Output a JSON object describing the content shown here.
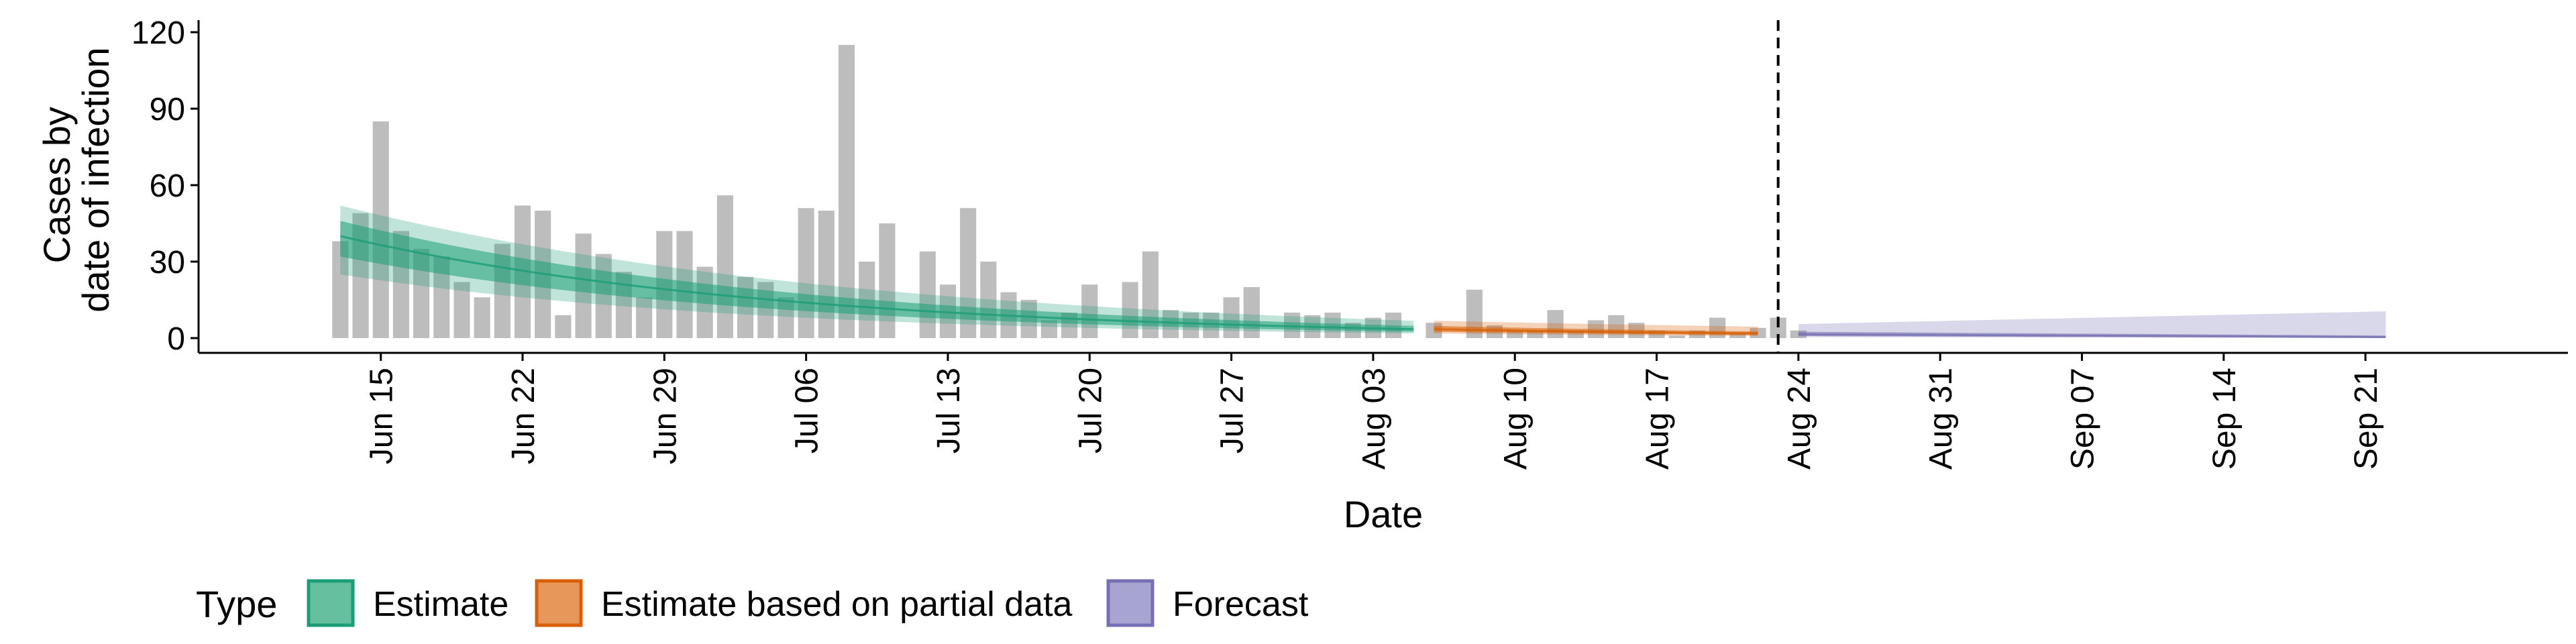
{
  "chart_data": {
    "type": "bar",
    "xlabel": "Date",
    "ylabel_lines": [
      "Cases by",
      "date of infection"
    ],
    "ylim": [
      0,
      120
    ],
    "yticks": [
      0,
      30,
      60,
      90,
      120
    ],
    "x_range": [
      "2020-06-06",
      "2020-10-01"
    ],
    "xticks": [
      {
        "date": "2020-06-15",
        "label": "Jun 15"
      },
      {
        "date": "2020-06-22",
        "label": "Jun 22"
      },
      {
        "date": "2020-06-29",
        "label": "Jun 29"
      },
      {
        "date": "2020-07-06",
        "label": "Jul 06"
      },
      {
        "date": "2020-07-13",
        "label": "Jul 13"
      },
      {
        "date": "2020-07-20",
        "label": "Jul 20"
      },
      {
        "date": "2020-07-27",
        "label": "Jul 27"
      },
      {
        "date": "2020-08-03",
        "label": "Aug 03"
      },
      {
        "date": "2020-08-10",
        "label": "Aug 10"
      },
      {
        "date": "2020-08-17",
        "label": "Aug 17"
      },
      {
        "date": "2020-08-24",
        "label": "Aug 24"
      },
      {
        "date": "2020-08-31",
        "label": "Aug 31"
      },
      {
        "date": "2020-09-07",
        "label": "Sep 07"
      },
      {
        "date": "2020-09-14",
        "label": "Sep 14"
      },
      {
        "date": "2020-09-21",
        "label": "Sep 21"
      }
    ],
    "cutoff_date": "2020-08-23",
    "bar_color": "#bdbdbd",
    "bars": {
      "start_date": "2020-06-13",
      "values": [
        38,
        49,
        85,
        42,
        35,
        32,
        22,
        16,
        37,
        52,
        50,
        9,
        41,
        33,
        26,
        16,
        42,
        42,
        28,
        56,
        24,
        22,
        16,
        51,
        50,
        115,
        30,
        45,
        0,
        34,
        21,
        51,
        30,
        18,
        15,
        7,
        10,
        21,
        0,
        22,
        34,
        11,
        10,
        10,
        16,
        20,
        0,
        10,
        9,
        10,
        6,
        8,
        10,
        0,
        6,
        0,
        19,
        5,
        3,
        3,
        11,
        3,
        7,
        9,
        6,
        3,
        1,
        3,
        8,
        2,
        4,
        8,
        3
      ]
    },
    "series": [
      {
        "name": "Estimate",
        "color": "#1b9e77",
        "start_date": "2020-06-13",
        "end_date": "2020-08-05",
        "median": [
          40,
          3.5
        ],
        "inner": [
          [
            32,
            46
          ],
          [
            2.5,
            4.8
          ]
        ],
        "outer": [
          [
            25,
            52
          ],
          [
            1.8,
            6.8
          ]
        ]
      },
      {
        "name": "Estimate based on partial data",
        "color": "#d95f02",
        "start_date": "2020-08-06",
        "end_date": "2020-08-22",
        "median": [
          3.5,
          1.8
        ],
        "inner": [
          [
            2.5,
            4.8
          ],
          [
            1.2,
            2.6
          ]
        ],
        "outer": [
          [
            1.8,
            6.8
          ],
          [
            0.8,
            4.5
          ]
        ]
      },
      {
        "name": "Forecast",
        "color": "#7570b3",
        "start_date": "2020-08-24",
        "end_date": "2020-09-22",
        "median": [
          1.5,
          0.4
        ],
        "inner": [
          [
            0.8,
            2.5
          ],
          [
            0.1,
            1.0
          ]
        ],
        "outer": [
          [
            0.4,
            5.5
          ],
          [
            0.0,
            10.5
          ]
        ]
      }
    ],
    "legend": {
      "title": "Type",
      "position": "bottom",
      "items": [
        {
          "label": "Estimate",
          "fill": "#66bf9f",
          "stroke": "#1b9e77"
        },
        {
          "label": "Estimate based on partial data",
          "fill": "#e8975a",
          "stroke": "#d95f02"
        },
        {
          "label": "Forecast",
          "fill": "#a7a4d2",
          "stroke": "#7570b3"
        }
      ]
    }
  }
}
